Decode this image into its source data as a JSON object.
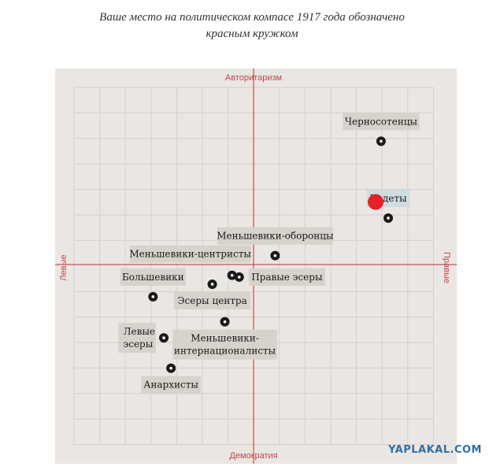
{
  "caption": {
    "line1": "Ваше место на политическом компасе 1917 года обозначено",
    "line2": "красным кружком"
  },
  "watermark": "YAPLAKAL.COM",
  "colors": {
    "background": "#e9e6e3",
    "grid": "#d4d0cb",
    "axis": "#c22f2f",
    "axis_label": "#c04848",
    "label_box": "#d6d2cc",
    "label_box_highlight": "#cfdde0",
    "marker": "#1a1a1a",
    "user_marker": "#e8202a"
  },
  "chart_data": {
    "type": "scatter",
    "axes": {
      "top": "Авторитаризм",
      "bottom": "Демократия",
      "left": "Левые",
      "right": "Правые"
    },
    "xlim": [
      -10,
      10
    ],
    "ylim": [
      -10,
      10
    ],
    "grid": true,
    "points": [
      {
        "label": [
          "Черносотенцы"
        ],
        "x": 7.1,
        "y": 6.9,
        "label_pos": "above",
        "highlight": false
      },
      {
        "label": [
          "Кадеты"
        ],
        "x": 7.5,
        "y": 2.6,
        "label_pos": "above",
        "highlight": true
      },
      {
        "label": [
          "Меньшевики-оборонцы"
        ],
        "x": 1.2,
        "y": 0.5,
        "label_pos": "above",
        "highlight": false
      },
      {
        "label": [
          "Меньшевики-центристы"
        ],
        "x": -1.2,
        "y": -0.6,
        "label_pos": "above-left",
        "highlight": false
      },
      {
        "label": [
          "Правые эсеры"
        ],
        "x": -0.8,
        "y": -0.7,
        "label_pos": "right",
        "highlight": false
      },
      {
        "label": [
          "Большевики"
        ],
        "x": -5.6,
        "y": -1.8,
        "label_pos": "above",
        "highlight": false
      },
      {
        "label": [
          "Эсеры центра"
        ],
        "x": -2.3,
        "y": -1.1,
        "label_pos": "below",
        "highlight": false
      },
      {
        "label": [
          "Меньшевики-",
          "интернационалисты"
        ],
        "x": -1.6,
        "y": -3.2,
        "label_pos": "below",
        "highlight": false
      },
      {
        "label": [
          "Левые",
          "эсеры"
        ],
        "x": -5.0,
        "y": -4.1,
        "label_pos": "left",
        "highlight": false
      },
      {
        "label": [
          "Анархисты"
        ],
        "x": -4.6,
        "y": -5.8,
        "label_pos": "below",
        "highlight": false
      }
    ],
    "user_position": {
      "x": 6.8,
      "y": 3.5
    }
  }
}
